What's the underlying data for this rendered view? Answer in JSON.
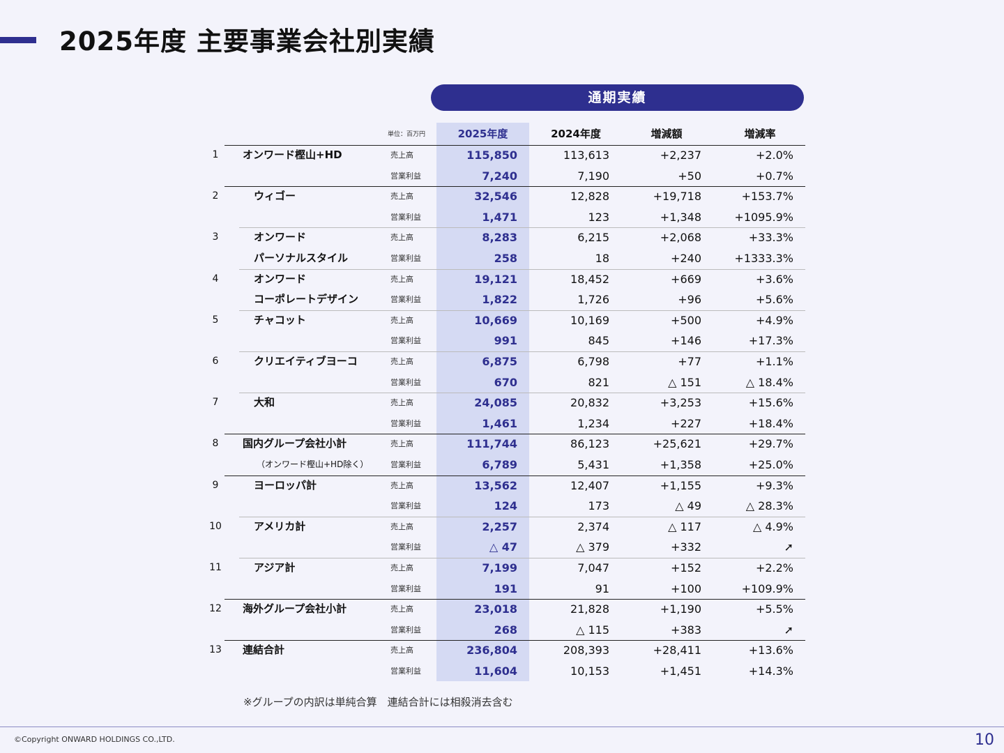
{
  "title": "2025年度 主要事業会社別実績",
  "section_label": "通期実績",
  "unit_note": "単位：百万円",
  "headers": {
    "fy2025": "2025年度",
    "fy2024": "2024年度",
    "diff": "増減額",
    "rate": "増減率"
  },
  "companies": [
    {
      "no": "1",
      "name": "オンワード樫山+HD",
      "indent": 0,
      "rows": [
        {
          "metric": "売上高",
          "fy2025": "115,850",
          "fy2024": "113,613",
          "diff": "+2,237",
          "rate": "+2.0%"
        },
        {
          "metric": "営業利益",
          "fy2025": "7,240",
          "fy2024": "7,190",
          "diff": "+50",
          "rate": "+0.7%"
        }
      ]
    },
    {
      "no": "2",
      "name": "ウィゴー",
      "indent": 1,
      "rows": [
        {
          "metric": "売上高",
          "fy2025": "32,546",
          "fy2024": "12,828",
          "diff": "+19,718",
          "rate": "+153.7%"
        },
        {
          "metric": "営業利益",
          "fy2025": "1,471",
          "fy2024": "123",
          "diff": "+1,348",
          "rate": "+1095.9%"
        }
      ]
    },
    {
      "no": "3",
      "name": "オンワード",
      "name2": "パーソナルスタイル",
      "indent": 1,
      "rows": [
        {
          "metric": "売上高",
          "fy2025": "8,283",
          "fy2024": "6,215",
          "diff": "+2,068",
          "rate": "+33.3%"
        },
        {
          "metric": "営業利益",
          "fy2025": "258",
          "fy2024": "18",
          "diff": "+240",
          "rate": "+1333.3%"
        }
      ]
    },
    {
      "no": "4",
      "name": "オンワード",
      "name2": "コーポレートデザイン",
      "indent": 1,
      "rows": [
        {
          "metric": "売上高",
          "fy2025": "19,121",
          "fy2024": "18,452",
          "diff": "+669",
          "rate": "+3.6%"
        },
        {
          "metric": "営業利益",
          "fy2025": "1,822",
          "fy2024": "1,726",
          "diff": "+96",
          "rate": "+5.6%"
        }
      ]
    },
    {
      "no": "5",
      "name": "チャコット",
      "indent": 1,
      "rows": [
        {
          "metric": "売上高",
          "fy2025": "10,669",
          "fy2024": "10,169",
          "diff": "+500",
          "rate": "+4.9%"
        },
        {
          "metric": "営業利益",
          "fy2025": "991",
          "fy2024": "845",
          "diff": "+146",
          "rate": "+17.3%"
        }
      ]
    },
    {
      "no": "6",
      "name": "クリエイティブヨーコ",
      "indent": 1,
      "rows": [
        {
          "metric": "売上高",
          "fy2025": "6,875",
          "fy2024": "6,798",
          "diff": "+77",
          "rate": "+1.1%"
        },
        {
          "metric": "営業利益",
          "fy2025": "670",
          "fy2024": "821",
          "diff": "△ 151",
          "rate": "△ 18.4%"
        }
      ]
    },
    {
      "no": "7",
      "name": "大和",
      "indent": 1,
      "rows": [
        {
          "metric": "売上高",
          "fy2025": "24,085",
          "fy2024": "20,832",
          "diff": "+3,253",
          "rate": "+15.6%"
        },
        {
          "metric": "営業利益",
          "fy2025": "1,461",
          "fy2024": "1,234",
          "diff": "+227",
          "rate": "+18.4%"
        }
      ]
    },
    {
      "no": "8",
      "name": "国内グループ会社小計",
      "sub": "（オンワード樫山+HD除く）",
      "indent": 0,
      "rows": [
        {
          "metric": "売上高",
          "fy2025": "111,744",
          "fy2024": "86,123",
          "diff": "+25,621",
          "rate": "+29.7%"
        },
        {
          "metric": "営業利益",
          "fy2025": "6,789",
          "fy2024": "5,431",
          "diff": "+1,358",
          "rate": "+25.0%"
        }
      ]
    },
    {
      "no": "9",
      "name": "ヨーロッパ計",
      "indent": 1,
      "rows": [
        {
          "metric": "売上高",
          "fy2025": "13,562",
          "fy2024": "12,407",
          "diff": "+1,155",
          "rate": "+9.3%"
        },
        {
          "metric": "営業利益",
          "fy2025": "124",
          "fy2024": "173",
          "diff": "△ 49",
          "rate": "△ 28.3%"
        }
      ]
    },
    {
      "no": "10",
      "name": "アメリカ計",
      "indent": 1,
      "rows": [
        {
          "metric": "売上高",
          "fy2025": "2,257",
          "fy2024": "2,374",
          "diff": "△ 117",
          "rate": "△ 4.9%"
        },
        {
          "metric": "営業利益",
          "fy2025": "△ 47",
          "fy2024": "△ 379",
          "diff": "+332",
          "rate": "➚"
        }
      ]
    },
    {
      "no": "11",
      "name": "アジア計",
      "indent": 1,
      "rows": [
        {
          "metric": "売上高",
          "fy2025": "7,199",
          "fy2024": "7,047",
          "diff": "+152",
          "rate": "+2.2%"
        },
        {
          "metric": "営業利益",
          "fy2025": "191",
          "fy2024": "91",
          "diff": "+100",
          "rate": "+109.9%"
        }
      ]
    },
    {
      "no": "12",
      "name": "海外グループ会社小計",
      "indent": 0,
      "rows": [
        {
          "metric": "売上高",
          "fy2025": "23,018",
          "fy2024": "21,828",
          "diff": "+1,190",
          "rate": "+5.5%"
        },
        {
          "metric": "営業利益",
          "fy2025": "268",
          "fy2024": "△ 115",
          "diff": "+383",
          "rate": "➚"
        }
      ]
    },
    {
      "no": "13",
      "name": "連結合計",
      "indent": 0,
      "rows": [
        {
          "metric": "売上高",
          "fy2025": "236,804",
          "fy2024": "208,393",
          "diff": "+28,411",
          "rate": "+13.6%"
        },
        {
          "metric": "営業利益",
          "fy2025": "11,604",
          "fy2024": "10,153",
          "diff": "+1,451",
          "rate": "+14.3%"
        }
      ]
    }
  ],
  "footnote": "※グループの内訳は単純合算　連結合計には相殺消去含む",
  "copyright": "©Copyright ONWARD HOLDINGS CO.,LTD.",
  "page_number": "10",
  "accent_color": "#2e2f8f",
  "highlight_color": "#d5daf3"
}
